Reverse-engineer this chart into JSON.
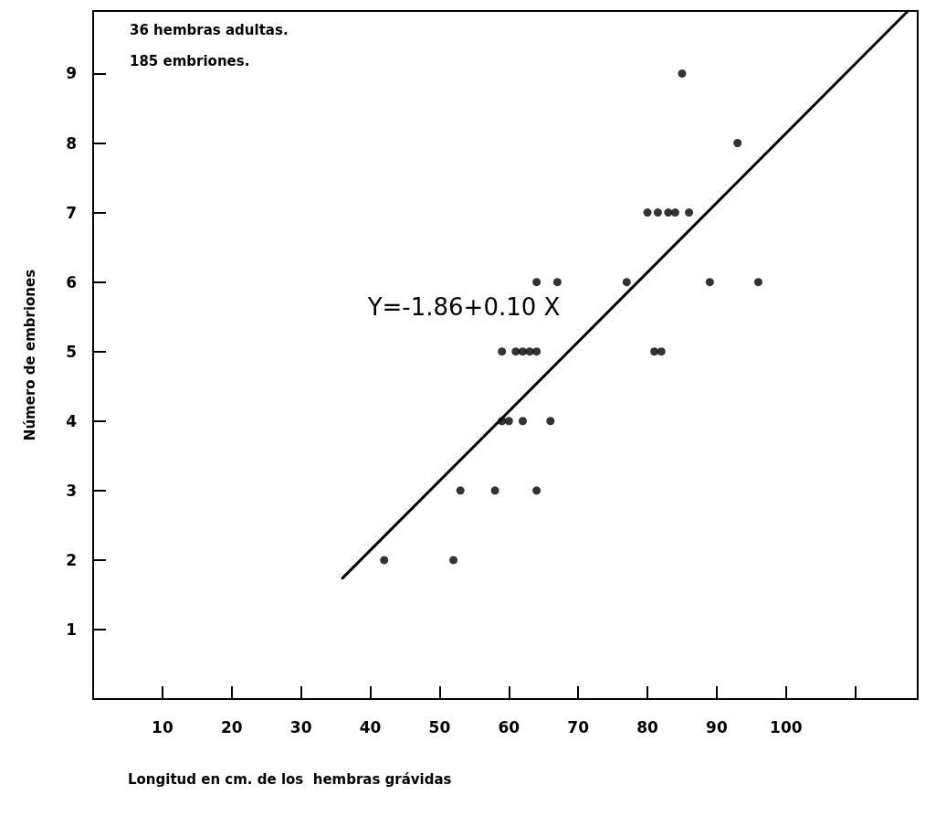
{
  "chart_data": {
    "type": "scatter",
    "xlabel": "Longitud en cm. de los  hembras grávidas",
    "ylabel": "Número de embriones",
    "xlim": [
      0,
      119
    ],
    "ylim": [
      0,
      9.9
    ],
    "xticks": [
      10,
      20,
      30,
      40,
      50,
      60,
      70,
      80,
      90,
      100,
      {
        "value": 110,
        "label": null
      }
    ],
    "yticks": [
      1,
      2,
      3,
      4,
      5,
      6,
      7,
      8,
      9
    ],
    "grid": false,
    "marker": "circle",
    "series": [
      {
        "color": "#000000",
        "x": [
          42,
          52,
          53,
          58,
          64,
          59,
          60,
          62,
          66,
          59,
          61,
          62,
          63,
          64,
          81,
          82,
          64,
          67,
          77,
          89,
          96,
          80,
          81.5,
          83,
          84,
          86,
          93,
          85
        ],
        "values": [
          2,
          2,
          3,
          3,
          3,
          4,
          4,
          4,
          4,
          5,
          5,
          5,
          5,
          5,
          5,
          5,
          6,
          6,
          6,
          6,
          6,
          7,
          7,
          7,
          7,
          7,
          8,
          9
        ]
      },
      {
        "type": "line",
        "color": "#000000",
        "x": [
          36,
          117.6
        ],
        "values": [
          1.74,
          9.9
        ],
        "line_style": "solid",
        "marker": "none"
      }
    ],
    "annotations": [
      "36 hembras adultas.",
      "185 embriones.",
      "Y=-1.86+0.10 X"
    ]
  }
}
